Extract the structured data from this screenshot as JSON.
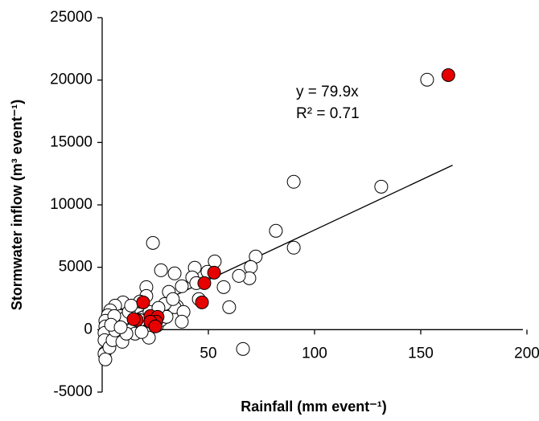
{
  "chart_data": {
    "type": "scatter",
    "x_label": "Rainfall (mm event⁻¹)",
    "y_label": "Stormwater inflow (m³ event⁻¹)",
    "annotations": [
      "y = 79.9x",
      "R² = 0.71"
    ],
    "xlim": [
      0,
      200
    ],
    "ylim": [
      -5000,
      25000
    ],
    "xticks": [
      0,
      50,
      100,
      150,
      200
    ],
    "yticks": [
      -5000,
      0,
      5000,
      10000,
      15000,
      20000,
      25000
    ],
    "series": [
      {
        "color": "#ffffff",
        "x": [
          153,
          131.4,
          90.2,
          90.2,
          81.8,
          72.3,
          70,
          69.3,
          64.4,
          66.3,
          23.9,
          57.2,
          53,
          49.6,
          43.6,
          42.4,
          44.3,
          45.5,
          37.5,
          34.1,
          27.7,
          31.4,
          35.2,
          34.1,
          38.3,
          29.5,
          29.5,
          20.8,
          20.8,
          17.8,
          9.8,
          6.1,
          3.8,
          2.7,
          1.5,
          1.5,
          1.1,
          1.1,
          1.1,
          1.5,
          3.4,
          4.9,
          6.1,
          6.8,
          8.7,
          11,
          12.5,
          13.6,
          14,
          15.5,
          9.5,
          11.4,
          20,
          22,
          25.8,
          27.7,
          30.3,
          33.3,
          22.3,
          26.5,
          5.7,
          4.2,
          8.7,
          17.8,
          59.8,
          18.6,
          37.5
        ],
        "values": [
          20030,
          11460,
          11850,
          6570,
          7920,
          5860,
          5020,
          4120,
          4310,
          -1545,
          6950,
          3410,
          5470,
          4640,
          4960,
          4190,
          3730,
          2450,
          3480,
          4510,
          4760,
          3030,
          1870,
          1800,
          1420,
          2060,
          1030,
          3410,
          2700,
          2250,
          2190,
          1930,
          1550,
          1160,
          710,
          260,
          -260,
          -840,
          -1930,
          -2380,
          -1420,
          -840,
          -60,
          580,
          1095,
          970,
          1420,
          1930,
          0,
          -320,
          -970,
          -320,
          -190,
          -640,
          320,
          770,
          1030,
          2450,
          1420,
          1740,
          1095,
          390,
          190,
          770,
          1800,
          -190,
          640
        ]
      },
      {
        "color": "#e60000",
        "x": [
          163,
          52.7,
          48.1,
          47,
          19.3,
          22.7,
          16.3,
          26.1,
          25.4,
          22.7,
          25,
          14.8
        ],
        "values": [
          20400,
          4570,
          3730,
          2190,
          2190,
          1095,
          770,
          1030,
          640,
          640,
          260,
          840
        ]
      }
    ],
    "trendline": {
      "color": "#000000",
      "x": [
        0,
        165
      ],
      "values": [
        0,
        13180
      ]
    }
  }
}
